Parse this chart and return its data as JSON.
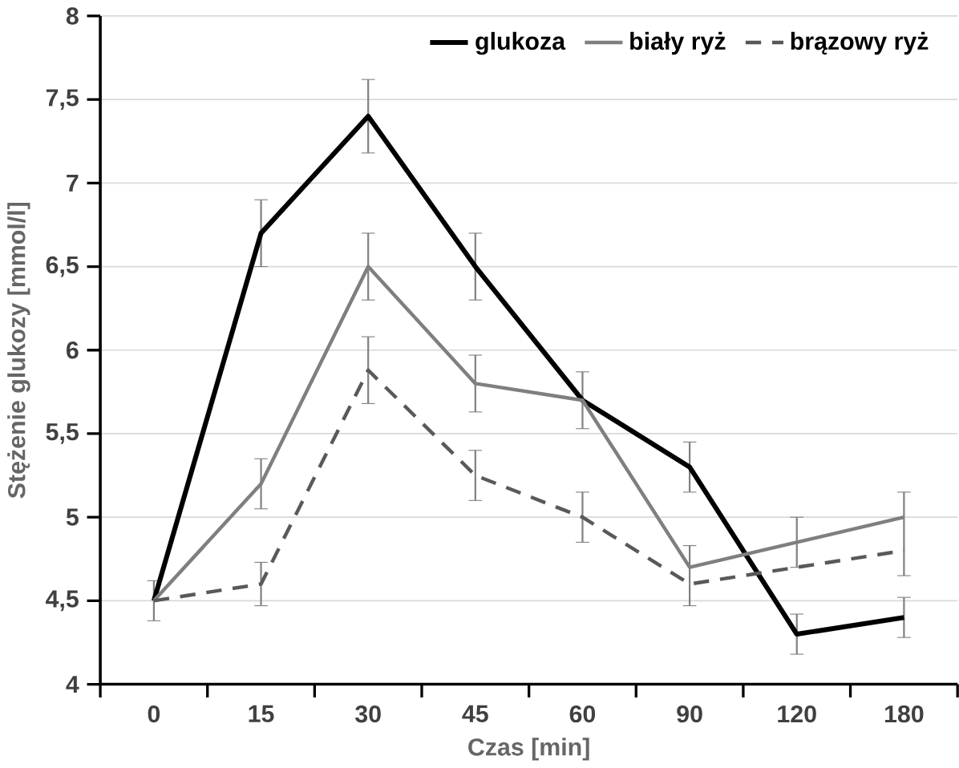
{
  "chart_data": {
    "type": "line",
    "xlabel": "Czas [min]",
    "ylabel": "Stężenie glukozy [mmol/l]",
    "categories": [
      "0",
      "15",
      "30",
      "45",
      "60",
      "90",
      "120",
      "180"
    ],
    "ylim": [
      4,
      8
    ],
    "yticks": [
      4,
      {
        "value": 4.5,
        "label": "4,5"
      },
      5,
      {
        "value": 5.5,
        "label": "5,5"
      },
      6,
      {
        "value": 6.5,
        "label": "6,5"
      },
      7,
      {
        "value": 7.5,
        "label": "7,5"
      },
      8
    ],
    "grid": "y",
    "legend": "top right",
    "marker": "none",
    "series": [
      {
        "name": "glukoza",
        "color": "#000000",
        "line_style": "solid",
        "values": [
          4.5,
          6.7,
          7.4,
          6.5,
          5.7,
          5.3,
          4.3,
          4.4
        ],
        "errors": [
          0.12,
          0.2,
          0.22,
          0.2,
          0.17,
          0.15,
          0.12,
          0.12
        ]
      },
      {
        "name": "biały ryż",
        "color": "#7f7f7f",
        "line_style": "solid",
        "values": [
          4.5,
          5.2,
          6.5,
          5.8,
          5.7,
          4.7,
          4.85,
          5.0
        ],
        "errors": [
          null,
          0.15,
          0.2,
          0.17,
          null,
          null,
          0.15,
          [
            4.65,
            5.15
          ]
        ]
      },
      {
        "name": "brązowy ryż",
        "color": "#595959",
        "line_style": "dashed",
        "values": [
          4.5,
          4.6,
          5.88,
          5.25,
          5.0,
          4.6,
          4.7,
          4.8
        ],
        "errors": [
          null,
          0.13,
          0.2,
          0.15,
          0.15,
          [
            4.47,
            4.83
          ],
          null,
          null
        ]
      }
    ]
  }
}
